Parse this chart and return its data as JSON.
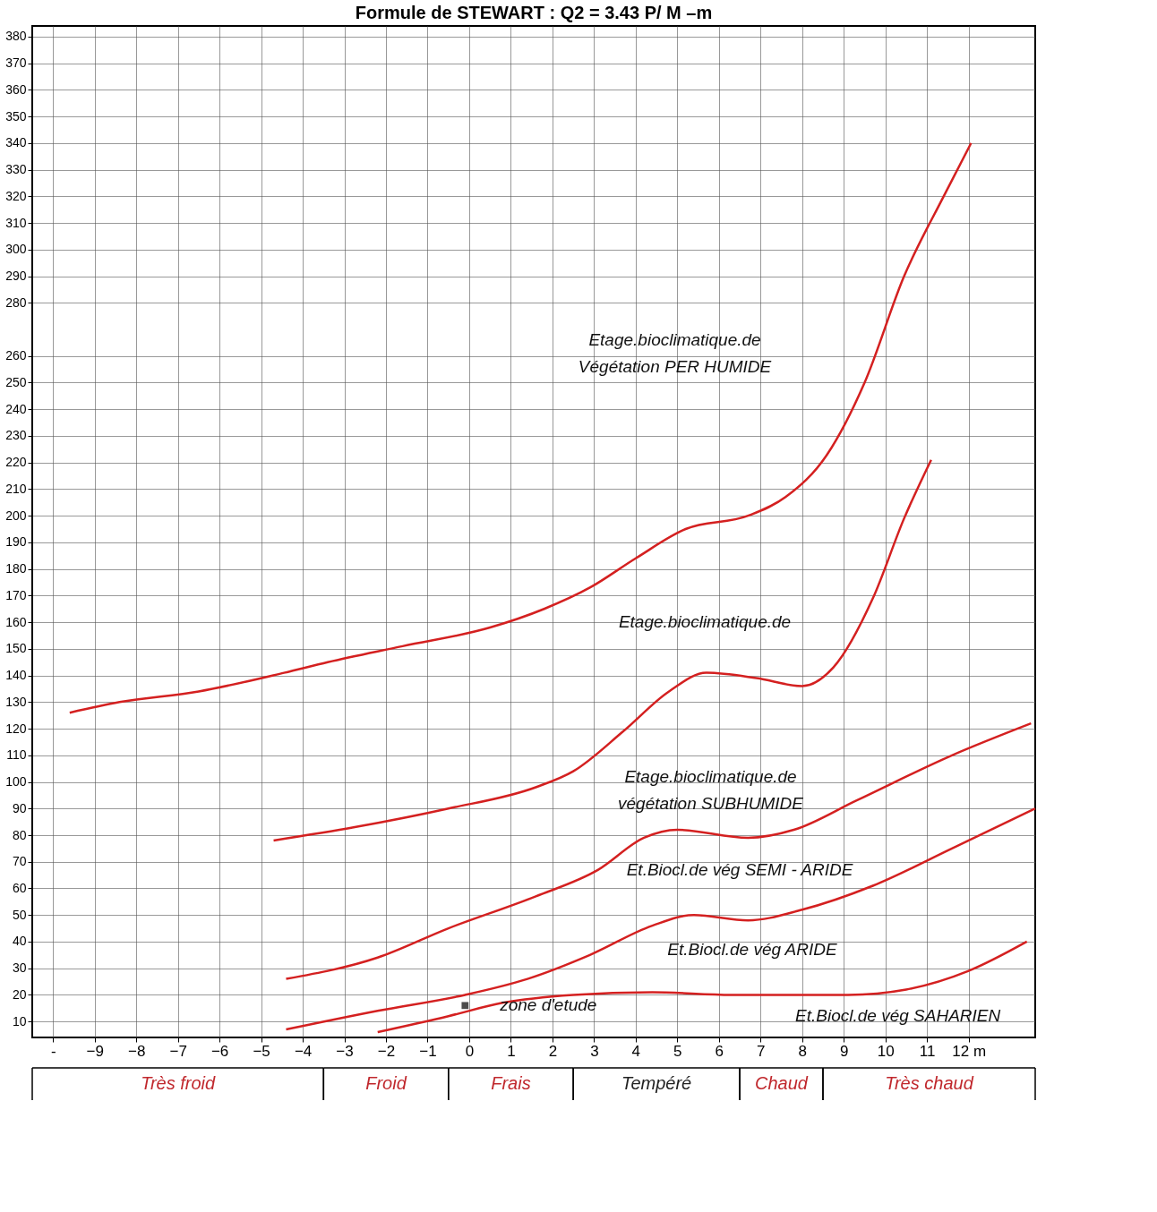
{
  "chart_data": {
    "type": "line",
    "title": "Formule de STEWART : Q2  =  3.43 P/ M –m",
    "xlim": [
      -10.5,
      13.6
    ],
    "ylim": [
      4,
      384
    ],
    "xticks": [
      {
        "value": -10,
        "label": "-"
      },
      -9,
      -8,
      -7,
      -6,
      -5,
      -4,
      -3,
      -2,
      -1,
      0,
      1,
      2,
      3,
      4,
      5,
      6,
      7,
      8,
      9,
      10,
      11,
      {
        "value": 12,
        "label": "12 m"
      }
    ],
    "yticks": [
      10,
      20,
      30,
      40,
      50,
      60,
      70,
      80,
      90,
      100,
      110,
      120,
      130,
      140,
      150,
      160,
      170,
      180,
      190,
      200,
      210,
      220,
      230,
      240,
      250,
      260,
      280,
      290,
      300,
      310,
      320,
      330,
      340,
      350,
      360,
      370,
      380
    ],
    "grid": true,
    "marker": "none",
    "line_style": "solid",
    "series": [
      {
        "color": "#d42020",
        "x": [
          -9.6,
          -8.4,
          -6.5,
          -4.45,
          -3.4,
          -1.6,
          0.5,
          1.8,
          2.9,
          4.0,
          5.2,
          6.7,
          7.6,
          8.6,
          9.5,
          10.45,
          11.4,
          12.06
        ],
        "values": [
          126,
          130,
          134,
          141,
          145,
          151,
          158,
          165,
          173,
          184,
          195,
          200,
          207,
          223,
          250,
          290,
          320,
          340
        ]
      },
      {
        "color": "#d42020",
        "x": [
          -4.7,
          -2.75,
          -0.5,
          1.6,
          2.5,
          3.7,
          4.8,
          5.7,
          6.9,
          8.0,
          8.75,
          9.7,
          10.45,
          11.1
        ],
        "values": [
          78,
          83,
          90,
          98,
          104,
          119,
          134,
          141,
          139,
          136,
          143,
          169,
          199,
          221
        ]
      },
      {
        "color": "#d42020",
        "x": [
          -4.4,
          -2.2,
          -0.5,
          1.6,
          3.1,
          4.2,
          5.0,
          6.7,
          7.8,
          9.3,
          11.6,
          13.5
        ],
        "values": [
          26,
          34,
          45,
          57,
          67,
          79,
          82,
          79,
          82,
          93,
          110,
          122
        ]
      },
      {
        "color": "#d42020",
        "x": [
          -4.4,
          -2.2,
          -0.1,
          1.4,
          2.9,
          4.4,
          5.4,
          6.7,
          8.0,
          9.7,
          11.6,
          13.6
        ],
        "values": [
          7,
          14,
          20,
          26,
          35,
          46,
          50,
          48,
          52,
          61,
          75,
          90
        ]
      },
      {
        "color": "#d42020",
        "x": [
          -2.2,
          -0.5,
          0.8,
          2.5,
          4.4,
          6.3,
          9.1,
          10.5,
          12.0,
          13.4
        ],
        "values": [
          6,
          12,
          17,
          20,
          21,
          20,
          20,
          22,
          29,
          40
        ]
      },
      {
        "type": "scatter",
        "marker": "square",
        "color": "#000000",
        "x": [
          -0.1
        ],
        "values": [
          16
        ]
      }
    ],
    "annotations": [
      "Etage.bioclimatique.de\nVégétation PER HUMIDE",
      "Etage.bioclimatique.de",
      "Etage.bioclimatique.de\nvégétation SUBHUMIDE",
      "Et.Biocl.de vég SEMI  - ARIDE",
      "Et.Biocl.de vég ARIDE",
      "Et.Biocl.de vég SAHARIEN",
      "zone d'etude",
      "Très froid",
      "Froid",
      "Frais",
      "Tempéré",
      "Chaud",
      "Très chaud"
    ]
  }
}
